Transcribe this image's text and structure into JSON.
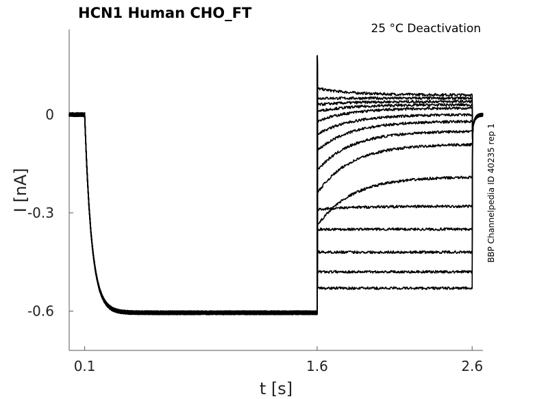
{
  "chart_data": {
    "type": "line",
    "title": "HCN1  Human  CHO_FT",
    "subtitle": "25 °C  Deactivation",
    "side_label": "BBP Channelpedia ID 40235 rep 1",
    "xlabel": "t [s]",
    "ylabel": "I [nA]",
    "xlim": [
      0,
      2.67
    ],
    "ylim": [
      -0.72,
      0.26
    ],
    "x_ticks": [
      0.1,
      1.6,
      2.6
    ],
    "x_tick_labels": [
      "0.1",
      "1.6",
      "2.6"
    ],
    "y_ticks": [
      0,
      -0.3,
      -0.6
    ],
    "y_tick_labels": [
      "0",
      "-0.3",
      "-0.6"
    ],
    "grid": false,
    "holding_current": 0.0,
    "activation_steady_state": -0.605,
    "step_onset_time": 0.1,
    "deactivation_step_time": 1.6,
    "deactivation_step_end": 2.6,
    "deactivation_peak": 0.18,
    "series": [
      {
        "start": 0.08,
        "end": 0.06
      },
      {
        "start": 0.05,
        "end": 0.05
      },
      {
        "start": 0.03,
        "end": 0.04
      },
      {
        "start": 0.01,
        "end": 0.03
      },
      {
        "start": -0.02,
        "end": 0.02
      },
      {
        "start": -0.06,
        "end": 0.0
      },
      {
        "start": -0.11,
        "end": -0.02
      },
      {
        "start": -0.17,
        "end": -0.05
      },
      {
        "start": -0.24,
        "end": -0.09
      },
      {
        "start": -0.34,
        "end": -0.19
      },
      {
        "start": -0.29,
        "end": -0.28
      },
      {
        "start": -0.35,
        "end": -0.35
      },
      {
        "start": -0.42,
        "end": -0.42
      },
      {
        "start": -0.48,
        "end": -0.48
      },
      {
        "start": -0.53,
        "end": -0.53
      }
    ]
  }
}
